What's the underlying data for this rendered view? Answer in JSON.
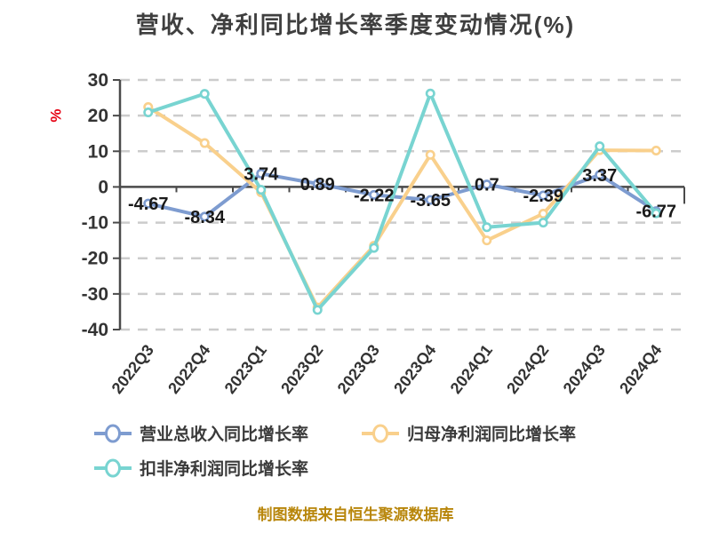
{
  "header": {
    "title": "营收、净利同比增长率季度变动情况(%)",
    "title_color": "#3f3f3f"
  },
  "footer": {
    "source": "制图数据来自恒生聚源数据库",
    "color": "#b8860b"
  },
  "chart_data": {
    "type": "line",
    "title": "营收、净利同比增长率季度变动情况(%)",
    "xlabel": "",
    "ylabel": "%",
    "ylabel_color": "#e60012",
    "categories": [
      "2022Q3",
      "2022Q4",
      "2023Q1",
      "2023Q2",
      "2023Q3",
      "2023Q4",
      "2024Q1",
      "2024Q2",
      "2024Q3",
      "2024Q4"
    ],
    "series": [
      {
        "name": "营业总收入同比增长率",
        "color": "#7e9cd0",
        "values": [
          -4.67,
          -8.34,
          3.74,
          0.89,
          -2.22,
          -3.65,
          0.7,
          -2.39,
          3.37,
          -6.77
        ],
        "show_labels": true
      },
      {
        "name": "归母净利润同比增长率",
        "color": "#f9d08c",
        "values": [
          22.4,
          12.3,
          -1.5,
          -33.8,
          -16.5,
          9.0,
          -15.0,
          -7.5,
          10.3,
          10.2
        ],
        "show_labels": false
      },
      {
        "name": "扣非净利润同比增长率",
        "color": "#78d4d1",
        "values": [
          20.9,
          26.1,
          -0.8,
          -34.5,
          -17.1,
          26.2,
          -11.3,
          -10.0,
          11.4,
          -7.4
        ],
        "show_labels": false
      }
    ],
    "ylim": [
      -40,
      30
    ],
    "yticks": [
      30,
      20,
      10,
      0,
      -10,
      -20,
      -30,
      -40
    ],
    "grid": "horizontal-dashed",
    "legend_position": "bottom-left",
    "colors": {
      "grid": "#cccccc",
      "axis": "#4a4a4a",
      "tick_label": "#333333",
      "data_label": "#1a1a1a"
    }
  }
}
